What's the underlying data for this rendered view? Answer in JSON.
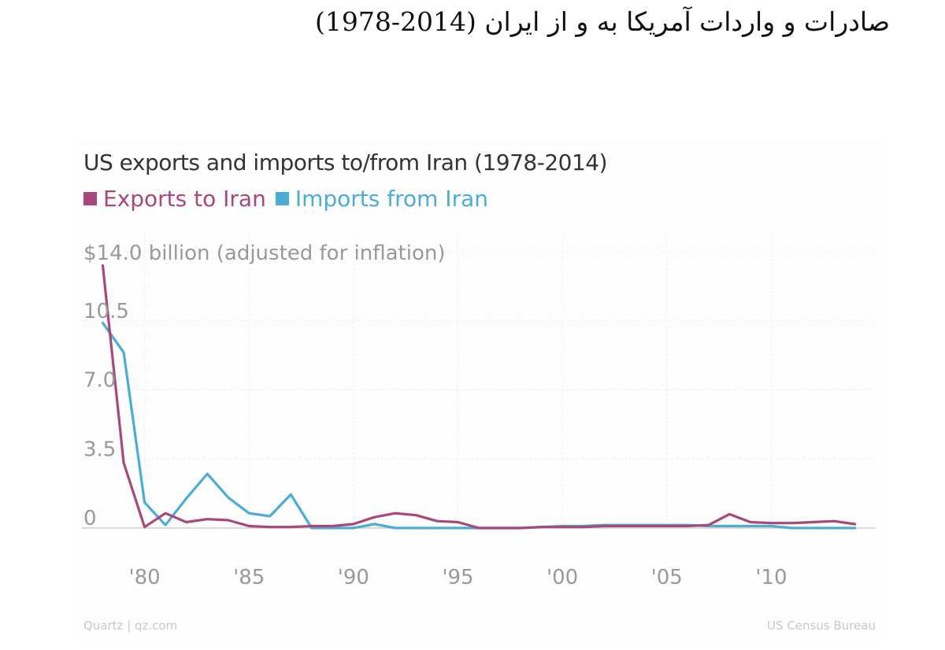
{
  "heading": "صادرات و واردات آمریکا به و از ایران (2014-1978)",
  "chart_data": {
    "type": "line",
    "title": "US exports and imports to/from Iran (1978-2014)",
    "ylabel": "$14.0 billion (adjusted for inflation)",
    "ylim": [
      0,
      14
    ],
    "y_ticks": [
      0,
      3.5,
      7.0,
      10.5
    ],
    "y_tick_labels": [
      "0",
      "3.5",
      "7.0",
      "10.5"
    ],
    "xlim": [
      1977,
      2015
    ],
    "x_ticks": [
      1980,
      1985,
      1990,
      1995,
      2000,
      2005,
      2010
    ],
    "x_tick_labels": [
      "'80",
      "'85",
      "'90",
      "'95",
      "'00",
      "'05",
      "'10"
    ],
    "grid": true,
    "legend_position": "top-left",
    "x": [
      1978,
      1979,
      1980,
      1981,
      1982,
      1983,
      1984,
      1985,
      1986,
      1987,
      1988,
      1989,
      1990,
      1991,
      1992,
      1993,
      1994,
      1995,
      1996,
      1997,
      1998,
      1999,
      2000,
      2001,
      2002,
      2003,
      2004,
      2005,
      2006,
      2007,
      2008,
      2009,
      2010,
      2011,
      2012,
      2013,
      2014
    ],
    "series": [
      {
        "name": "Exports to Iran",
        "color": "#a8487a",
        "values": [
          13.3,
          3.3,
          0.05,
          0.75,
          0.3,
          0.45,
          0.4,
          0.1,
          0.05,
          0.05,
          0.1,
          0.1,
          0.2,
          0.55,
          0.75,
          0.65,
          0.35,
          0.3,
          0.0,
          0.0,
          0.0,
          0.05,
          0.05,
          0.05,
          0.1,
          0.1,
          0.1,
          0.1,
          0.1,
          0.15,
          0.7,
          0.3,
          0.25,
          0.25,
          0.3,
          0.35,
          0.2
        ]
      },
      {
        "name": "Imports from Iran",
        "color": "#4badd6",
        "values": [
          10.4,
          8.9,
          1.3,
          0.15,
          1.5,
          2.75,
          1.55,
          0.75,
          0.6,
          1.7,
          0.0,
          0.0,
          0.0,
          0.2,
          0.0,
          0.0,
          0.0,
          0.0,
          0.0,
          0.0,
          0.0,
          0.05,
          0.1,
          0.1,
          0.15,
          0.15,
          0.15,
          0.15,
          0.15,
          0.1,
          0.1,
          0.1,
          0.1,
          0.0,
          0.0,
          0.0,
          0.0
        ]
      }
    ]
  },
  "footer": {
    "source_left": "Quartz | qz.com",
    "source_right": "US Census Bureau"
  },
  "colors": {
    "exports": "#a8487a",
    "imports": "#4badd6",
    "grid": "#ececec",
    "axis_text": "#999999",
    "footer_text": "#c8c8c8"
  }
}
